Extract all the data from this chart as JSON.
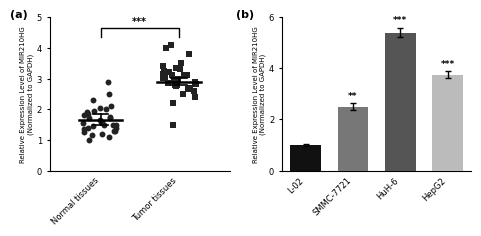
{
  "panel_a": {
    "label": "(a)",
    "group1_label": "Normal tissues",
    "group2_label": "Tumor tissues",
    "group1_mean": 1.65,
    "group1_sem": 0.18,
    "group2_mean": 2.9,
    "group2_sem": 0.12,
    "group1_points": [
      1.0,
      1.1,
      1.15,
      1.2,
      1.25,
      1.3,
      1.3,
      1.35,
      1.4,
      1.4,
      1.45,
      1.5,
      1.5,
      1.5,
      1.55,
      1.6,
      1.6,
      1.65,
      1.7,
      1.7,
      1.75,
      1.8,
      1.85,
      1.9,
      1.95,
      2.0,
      2.05,
      2.1,
      2.3,
      2.5,
      2.9
    ],
    "group2_points": [
      1.5,
      2.2,
      2.4,
      2.5,
      2.6,
      2.65,
      2.7,
      2.75,
      2.8,
      2.8,
      2.82,
      2.85,
      2.9,
      2.9,
      2.92,
      2.95,
      3.0,
      3.0,
      3.02,
      3.05,
      3.1,
      3.1,
      3.15,
      3.1,
      3.2,
      3.25,
      3.3,
      3.35,
      3.4,
      3.5,
      3.8,
      4.0,
      4.1
    ],
    "ylim": [
      0,
      5
    ],
    "yticks": [
      0,
      1,
      2,
      3,
      4,
      5
    ],
    "ylabel": "Relative Expression Level of MIR210HG\n(Normalized to GAPDH)",
    "significance": "***",
    "marker1": "o",
    "marker2": "s",
    "marker_color": "#222222",
    "marker_size": 18
  },
  "panel_b": {
    "label": "(b)",
    "categories": [
      "L-02",
      "SMMC-7721",
      "HuH-6",
      "HepG2"
    ],
    "values": [
      1.0,
      2.5,
      5.4,
      3.75
    ],
    "errors": [
      0.04,
      0.13,
      0.18,
      0.13
    ],
    "colors": [
      "#111111",
      "#777777",
      "#555555",
      "#bbbbbb"
    ],
    "significance": [
      "",
      "**",
      "***",
      "***"
    ],
    "ylim": [
      0,
      6
    ],
    "yticks": [
      0,
      2,
      4,
      6
    ],
    "ylabel": "Relative Expression Level of MIR210HG\n(Normalized to GAPDH)"
  }
}
